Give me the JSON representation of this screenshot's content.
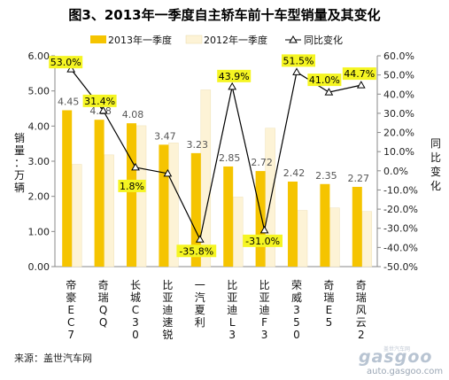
{
  "chart_data": {
    "type": "bar",
    "title": "图3、2013年一季度自主轿车前十车型销量及其变化",
    "categories": [
      "帝豪EC7",
      "奇瑞QQ",
      "长城C30",
      "比亚迪速锐",
      "一汽夏利",
      "比亚迪L3",
      "比亚迪F3",
      "荣威350",
      "奇瑞E5",
      "奇瑞风云2"
    ],
    "category_lines": [
      [
        "帝",
        "豪",
        "E",
        "C",
        "7"
      ],
      [
        "奇",
        "瑞",
        "Q",
        "Q"
      ],
      [
        "长",
        "城",
        "C",
        "3",
        "0"
      ],
      [
        "比",
        "亚",
        "迪",
        "速",
        "锐"
      ],
      [
        "一",
        "汽",
        "夏",
        "利"
      ],
      [
        "比",
        "亚",
        "迪",
        "L",
        "3"
      ],
      [
        "比",
        "亚",
        "迪",
        "F",
        "3"
      ],
      [
        "荣",
        "威",
        "3",
        "5",
        "0"
      ],
      [
        "奇",
        "瑞",
        "E",
        "5"
      ],
      [
        "奇",
        "瑞",
        "风",
        "云",
        "2"
      ]
    ],
    "series": [
      {
        "name": "2013年一季度",
        "kind": "bar",
        "axis": "left",
        "values": [
          4.45,
          4.18,
          4.08,
          3.47,
          3.23,
          2.85,
          2.72,
          2.42,
          2.35,
          2.27
        ],
        "labels": [
          "4.45",
          "4.18",
          "4.08",
          "3.47",
          "3.23",
          "2.85",
          "2.72",
          "2.42",
          "2.35",
          "2.27"
        ],
        "color": "#f5c400"
      },
      {
        "name": "2012年一季度",
        "kind": "bar",
        "axis": "left",
        "values": [
          2.91,
          3.18,
          4.01,
          3.52,
          5.03,
          1.98,
          3.94,
          1.6,
          1.67,
          1.57
        ],
        "color": "#fdf3d6"
      },
      {
        "name": "同比变化",
        "kind": "line",
        "axis": "right",
        "values": [
          53.0,
          31.4,
          1.8,
          -1.4,
          -35.8,
          43.9,
          -31.0,
          51.5,
          41.0,
          44.7
        ],
        "labels": [
          "53.0%",
          "31.4%",
          "1.8%",
          "",
          "-35.8%",
          "43.9%",
          "-31.0%",
          "51.5%",
          "41.0%",
          "44.7%"
        ],
        "color": "#000000",
        "label_bg": "#f5f522"
      }
    ],
    "y_left": {
      "label_chars": [
        "销",
        "量",
        "：",
        "万",
        "辆"
      ],
      "range": [
        0,
        6
      ],
      "ticks": [
        "0.00",
        "1.00",
        "2.00",
        "3.00",
        "4.00",
        "5.00",
        "6.00"
      ]
    },
    "y_right": {
      "label_chars": [
        "同",
        "比",
        "变",
        "化"
      ],
      "range": [
        -50,
        60
      ],
      "ticks": [
        "-50.0%",
        "-40.0%",
        "-30.0%",
        "-20.0%",
        "-10.0%",
        "0.0%",
        "10.0%",
        "20.0%",
        "30.0%",
        "40.0%",
        "50.0%",
        "60.0%"
      ]
    },
    "legend": {
      "position": "top",
      "items": [
        "2013年一季度",
        "2012年一季度",
        "同比变化"
      ]
    },
    "grid": false
  },
  "footer": {
    "source": "来源：盖世汽车网"
  },
  "watermark": {
    "brand": "gasgoo",
    "tagline": "盖世汽车网",
    "url": "auto.gasgoo.com"
  }
}
